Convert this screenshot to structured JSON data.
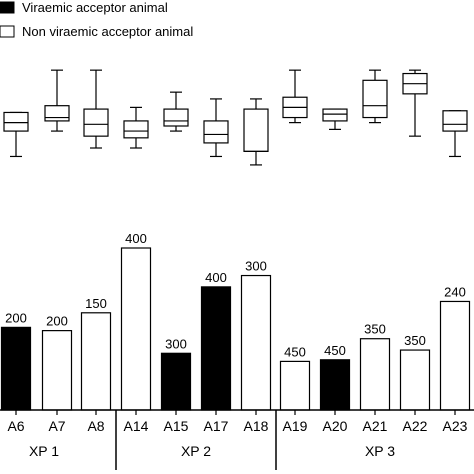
{
  "chart_data": [
    {
      "type": "box",
      "categories": [
        "A6",
        "A7",
        "A8",
        "A14",
        "A15",
        "A17",
        "A18",
        "A19",
        "A20",
        "A21",
        "A22",
        "A23"
      ],
      "boxes": [
        {
          "min": 33,
          "q1": 48,
          "median": 53,
          "q3": 59,
          "max": 59
        },
        {
          "min": 48,
          "q1": 54,
          "median": 56,
          "q3": 63,
          "max": 84
        },
        {
          "min": 38,
          "q1": 45,
          "median": 52,
          "q3": 61,
          "max": 84
        },
        {
          "min": 38,
          "q1": 44,
          "median": 48,
          "q3": 54,
          "max": 62
        },
        {
          "min": 48,
          "q1": 51,
          "median": 54,
          "q3": 61,
          "max": 71
        },
        {
          "min": 33,
          "q1": 41,
          "median": 46,
          "q3": 54,
          "max": 67
        },
        {
          "min": 28,
          "q1": 36,
          "median": 36,
          "q3": 61,
          "max": 67
        },
        {
          "min": 53,
          "q1": 56,
          "median": 62,
          "q3": 68,
          "max": 84
        },
        {
          "min": 49,
          "q1": 54,
          "median": 58,
          "q3": 61,
          "max": 61
        },
        {
          "min": 53,
          "q1": 56,
          "median": 63,
          "q3": 78,
          "max": 84
        },
        {
          "min": 45,
          "q1": 70,
          "median": 76,
          "q3": 82,
          "max": 84
        },
        {
          "min": 33,
          "q1": 48,
          "median": 52,
          "q3": 60,
          "max": 60
        }
      ]
    },
    {
      "type": "bar",
      "categories": [
        "A6",
        "A7",
        "A8",
        "A14",
        "A15",
        "A17",
        "A18",
        "A19",
        "A20",
        "A21",
        "A22",
        "A23"
      ],
      "values": [
        51,
        49,
        60,
        100,
        35,
        76,
        83,
        30,
        31,
        44,
        37,
        67
      ],
      "data_labels": [
        "200",
        "200",
        "150",
        "400",
        "300",
        "400",
        "300",
        "450",
        "450",
        "350",
        "350",
        "240"
      ],
      "viraemic": [
        true,
        false,
        false,
        false,
        true,
        true,
        false,
        false,
        true,
        false,
        false,
        false
      ],
      "groups": [
        {
          "label": "XP 1",
          "start": 0,
          "end": 2
        },
        {
          "label": "XP 2",
          "start": 3,
          "end": 6
        },
        {
          "label": "XP 3",
          "start": 7,
          "end": 11
        }
      ],
      "legend": {
        "placement": "top-left",
        "entries": [
          {
            "label": "Viraemic acceptor animal",
            "fill": "#000000"
          },
          {
            "label": "Non viraemic acceptor animal",
            "fill": "#ffffff"
          }
        ]
      },
      "colors": {
        "viraemic": "#000000",
        "non_viraemic": "#ffffff",
        "stroke": "#000000"
      }
    }
  ]
}
